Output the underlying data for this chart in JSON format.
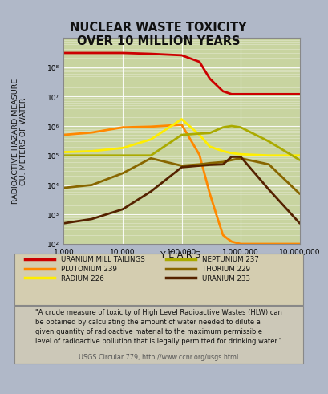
{
  "title": "NUCLEAR WASTE TOXICITY\nOVER 10 MILLION YEARS",
  "ylabel": "RADIOACTIVE HAZARD MEASURE\nCU. METERS OF WATER",
  "xlabel": "Y E A R S",
  "bg_color": "#c8d4a0",
  "outer_bg": "#b0b8c8",
  "xlim": [
    1000,
    10000000
  ],
  "ylim": [
    100,
    1000000000
  ],
  "series": [
    {
      "key": "uranium_mill_tailings",
      "label": "URANIUM MILL TAILINGS",
      "color": "#cc0000",
      "x": [
        1000,
        3000,
        10000,
        30000,
        100000,
        200000,
        300000,
        500000,
        700000,
        1000000,
        3000000,
        10000000
      ],
      "y": [
        300000000.0,
        300000000.0,
        300000000.0,
        280000000.0,
        250000000.0,
        150000000.0,
        40000000.0,
        15000000.0,
        12000000.0,
        12000000.0,
        12000000.0,
        12000000.0
      ]
    },
    {
      "key": "plutonium_239",
      "label": "PLUTONIUM 239",
      "color": "#ff8800",
      "x": [
        1000,
        3000,
        10000,
        30000,
        100000,
        200000,
        300000,
        400000,
        500000,
        600000,
        700000,
        1000000,
        3000000,
        10000000
      ],
      "y": [
        500000.0,
        600000.0,
        900000.0,
        950000.0,
        1100000.0,
        105000.0,
        5000.0,
        800.0,
        200.0,
        150.0,
        120.0,
        100.0,
        100.0,
        100.0
      ]
    },
    {
      "key": "radium_226",
      "label": "RADIUM 226",
      "color": "#ffee00",
      "x": [
        1000,
        3000,
        10000,
        30000,
        100000,
        200000,
        300000,
        500000,
        700000,
        1000000,
        3000000,
        10000000
      ],
      "y": [
        130000.0,
        140000.0,
        180000.0,
        350000.0,
        1700000.0,
        500000.0,
        200000.0,
        140000.0,
        120000.0,
        110000.0,
        100000.0,
        100000.0
      ]
    },
    {
      "key": "neptunium_237",
      "label": "NEPTUNIUM 237",
      "color": "#aaaa00",
      "x": [
        1000,
        3000,
        10000,
        30000,
        100000,
        200000,
        300000,
        500000,
        700000,
        1000000,
        3000000,
        10000000
      ],
      "y": [
        100000.0,
        100000.0,
        100000.0,
        100000.0,
        500000.0,
        550000.0,
        580000.0,
        900000.0,
        1000000.0,
        900000.0,
        300000.0,
        70000.0
      ]
    },
    {
      "key": "thorium_229",
      "label": "THORIUM 229",
      "color": "#886600",
      "x": [
        1000,
        3000,
        10000,
        30000,
        100000,
        200000,
        300000,
        500000,
        700000,
        1000000,
        3000000,
        10000000
      ],
      "y": [
        8000.0,
        10000.0,
        25000.0,
        80000.0,
        45000.0,
        50000.0,
        55000.0,
        60000.0,
        70000.0,
        80000.0,
        50000.0,
        5000.0
      ]
    },
    {
      "key": "uranium_233",
      "label": "URANIUM 233",
      "color": "#552200",
      "x": [
        1000,
        3000,
        10000,
        30000,
        100000,
        200000,
        300000,
        500000,
        700000,
        1000000,
        3000000,
        10000000
      ],
      "y": [
        500.0,
        700.0,
        1500.0,
        6000.0,
        40000.0,
        45000.0,
        48000.0,
        50000.0,
        90000.0,
        90000.0,
        7000.0,
        500.0
      ]
    }
  ],
  "legend": [
    {
      "label": "URANIUM MILL TAILINGS",
      "color": "#cc0000"
    },
    {
      "label": "PLUTONIUM 239",
      "color": "#ff8800"
    },
    {
      "label": "RADIUM 226",
      "color": "#ffee00"
    },
    {
      "label": "NEPTUNIUM 237",
      "color": "#aaaa00"
    },
    {
      "label": "THORIUM 229",
      "color": "#886600"
    },
    {
      "label": "URANIUM 233",
      "color": "#552200"
    }
  ],
  "footnote": "\"A crude measure of toxicity of High Level Radioactive Wastes (HLW) can\nbe obtained by calculating the amount of water needed to dilute a\ngiven quantity of radioactive material to the maximum permissible\nlevel of radioactive pollution that is legally permitted for drinking water.\"",
  "citation": "USGS Circular 779, http://www.ccnr.org/usgs.html",
  "xtick_labels": [
    "1,000",
    "10,000",
    "100,000",
    "1,000,000",
    "10,000,000"
  ],
  "xtick_vals": [
    1000,
    10000,
    100000,
    1000000,
    10000000
  ],
  "ytick_vals": [
    100,
    1000,
    10000,
    100000,
    1000000,
    10000000,
    100000000
  ],
  "ytick_labels": [
    "10²",
    "10³",
    "10⁴",
    "10⁵",
    "10⁶",
    "10⁷",
    "10⁸"
  ]
}
